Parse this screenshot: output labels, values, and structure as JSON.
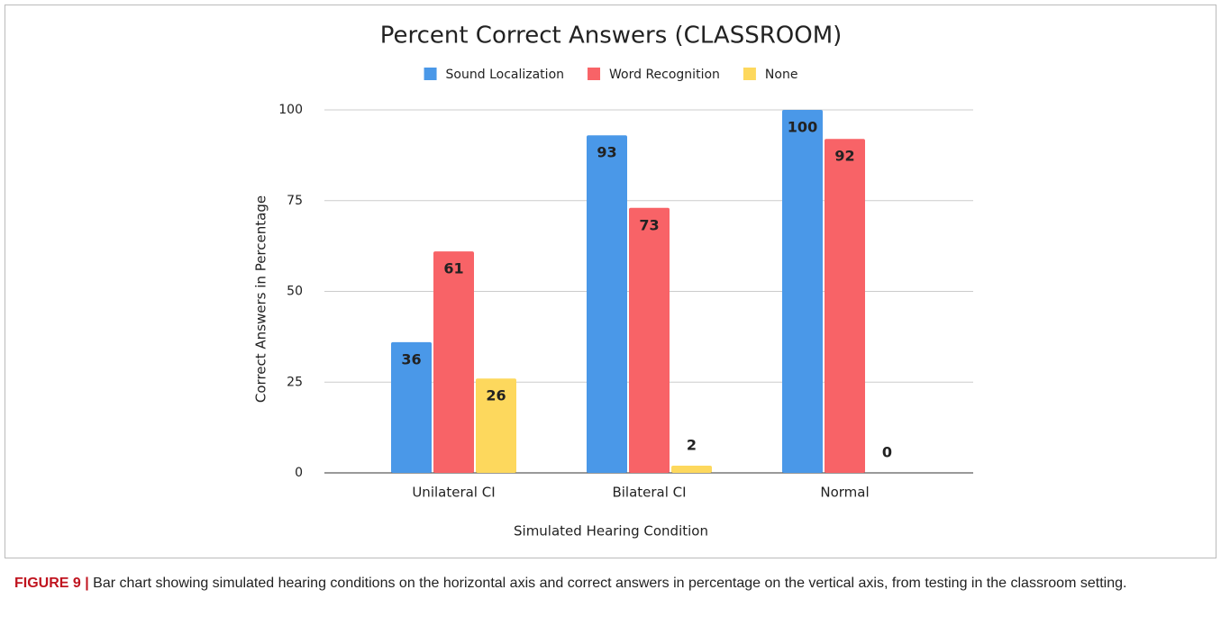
{
  "chart_data": {
    "type": "bar",
    "title": "Percent Correct Answers (CLASSROOM)",
    "x_label": "Simulated Hearing Condition",
    "y_label": "Correct Answers in Percentage",
    "categories": [
      "Unilateral CI",
      "Bilateral CI",
      "Normal"
    ],
    "series": [
      {
        "name": "Sound Localization",
        "color": "#4a98e8",
        "values": [
          36,
          93,
          100
        ]
      },
      {
        "name": "Word Recognition",
        "color": "#f86367",
        "values": [
          61,
          73,
          92
        ]
      },
      {
        "name": "None",
        "color": "#fdd85d",
        "values": [
          26,
          2,
          0
        ]
      }
    ],
    "ylim": [
      0,
      100
    ],
    "yticks": [
      0,
      25,
      50,
      75,
      100
    ],
    "grid": true,
    "legend": "top"
  },
  "caption": {
    "label": "FIGURE 9 |",
    "text": "Bar chart showing simulated hearing conditions on the horizontal axis and correct answers in percentage on the vertical axis, from testing in the classroom setting."
  }
}
